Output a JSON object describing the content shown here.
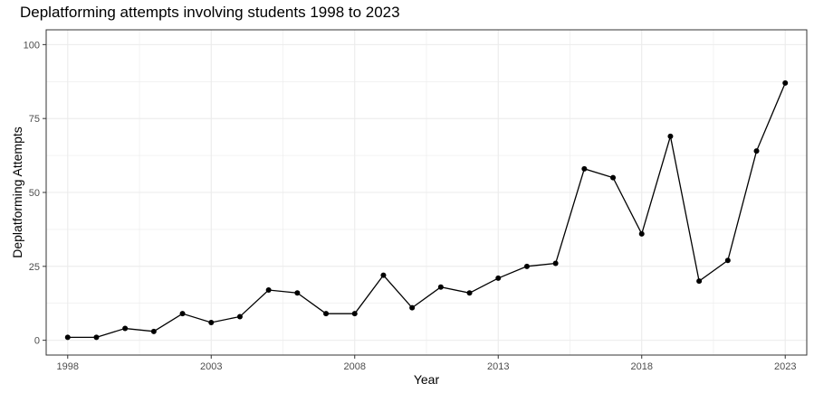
{
  "chart_data": {
    "type": "line",
    "title": "Deplatforming attempts involving students 1998 to 2023",
    "xlabel": "Year",
    "ylabel": "Deplatforming Attempts",
    "x": [
      1998,
      1999,
      2000,
      2001,
      2002,
      2003,
      2004,
      2005,
      2006,
      2007,
      2008,
      2009,
      2010,
      2011,
      2012,
      2013,
      2014,
      2015,
      2016,
      2017,
      2018,
      2019,
      2020,
      2021,
      2022,
      2023
    ],
    "y": [
      1,
      1,
      4,
      3,
      9,
      6,
      8,
      17,
      16,
      9,
      9,
      22,
      11,
      18,
      16,
      21,
      25,
      26,
      58,
      55,
      36,
      69,
      20,
      27,
      64,
      87
    ],
    "xlim": [
      1997.25,
      2023.75
    ],
    "ylim": [
      -5,
      105
    ],
    "xticks": [
      1998,
      2003,
      2008,
      2013,
      2018,
      2023
    ],
    "yticks": [
      0,
      25,
      50,
      75,
      100
    ],
    "grid": true,
    "legend": "none",
    "line_color": "#000000",
    "point_color": "#000000",
    "grid_color": "#ebebeb",
    "panel_border_color": "#333333"
  }
}
